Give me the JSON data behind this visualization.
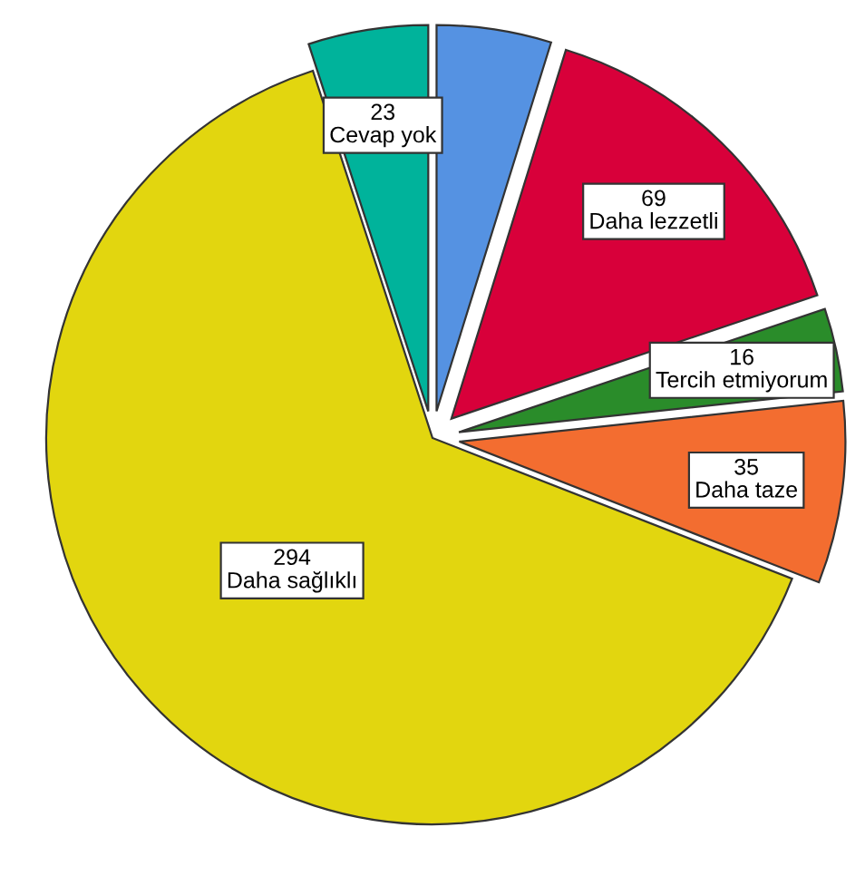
{
  "chart_data": {
    "type": "pie",
    "categories": [
      null,
      "Daha lezzetli",
      "Tercih etmiyorum",
      "Daha taze",
      "Daha sağlıklı",
      "Cevap yok"
    ],
    "values": [
      22,
      69,
      16,
      35,
      294,
      23
    ],
    "value_labels": [
      null,
      "69",
      "16",
      "35",
      "294",
      "23"
    ],
    "colors": [
      "#5592e2",
      "#d8003a",
      "#2a8c2a",
      "#f36d30",
      "#e2d60f",
      "#00b39b"
    ]
  }
}
